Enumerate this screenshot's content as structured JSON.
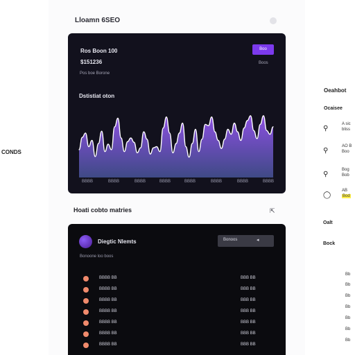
{
  "left_rail": {
    "label": "CONDS"
  },
  "header": {
    "title": "Lloamn 6SEO"
  },
  "chart_card": {
    "line1": "Ros Boon 100",
    "line2": "$151236",
    "line3": "Pos boe   Borone",
    "right_note": "Boos",
    "button_label": "Boo",
    "chart_title": "Dstistiat oton"
  },
  "chart_data": {
    "type": "area",
    "title": "Dstistiat oton",
    "x_tick_labels": [
      "BBBB",
      "BBBB",
      "BBBB",
      "BBBB",
      "BBBB",
      "BBBB",
      "BBBB",
      "BBBB"
    ],
    "values": [
      45,
      65,
      72,
      50,
      60,
      34,
      55,
      75,
      42,
      54,
      45,
      82,
      96,
      64,
      42,
      58,
      64,
      57,
      40,
      48,
      74,
      62,
      38,
      48,
      50,
      42,
      80,
      98,
      72,
      40,
      55,
      72,
      88,
      50,
      33,
      55,
      78,
      42,
      62,
      86,
      84,
      98,
      74,
      60,
      47,
      62,
      78,
      70,
      88,
      74,
      60,
      80,
      92,
      100,
      76,
      63,
      86,
      100,
      76,
      70,
      82
    ],
    "ylim": [
      0,
      110
    ],
    "colors": {
      "fill_top": "#8b4fe0",
      "fill_bottom": "#3f4a86",
      "line": "#ffffff"
    }
  },
  "metrics_section": {
    "title": "Hoati cobto matries",
    "card": {
      "name": "Diegtic Nlemts",
      "select_value": "Bonoos",
      "subtitle": "Bonoone loo boos",
      "rows": [
        {
          "label": "BBBB BB",
          "value": "BBB BB"
        },
        {
          "label": "BBBB BB",
          "value": "BBB BB"
        },
        {
          "label": "BBBB BB",
          "value": "BBB BB"
        },
        {
          "label": "BBBB BB",
          "value": "BBB BB"
        },
        {
          "label": "BBBB BB",
          "value": "BBB BB"
        },
        {
          "label": "BBBB BB",
          "value": "BBB BB"
        },
        {
          "label": "BBBB BB",
          "value": "BBB BB"
        }
      ]
    }
  },
  "right_rail": {
    "heading": "Oeahbot",
    "subheading": "Ocaisee",
    "items": [
      {
        "icon": "search-icon",
        "line1": "A sic",
        "line2": "bliss"
      },
      {
        "icon": "search-icon",
        "line1": "AO B",
        "line2": "Boo"
      },
      {
        "icon": "search-icon",
        "line1": "Bog",
        "line2": "Bob"
      },
      {
        "icon": "chat-icon",
        "line1": "AB",
        "line2": "Bod"
      }
    ],
    "label_1": "Oalt",
    "label_2": "Bock",
    "small_items": [
      "Bb",
      "Bb",
      "Bb",
      "Bb",
      "Bb",
      "Bb",
      "Bb"
    ]
  }
}
